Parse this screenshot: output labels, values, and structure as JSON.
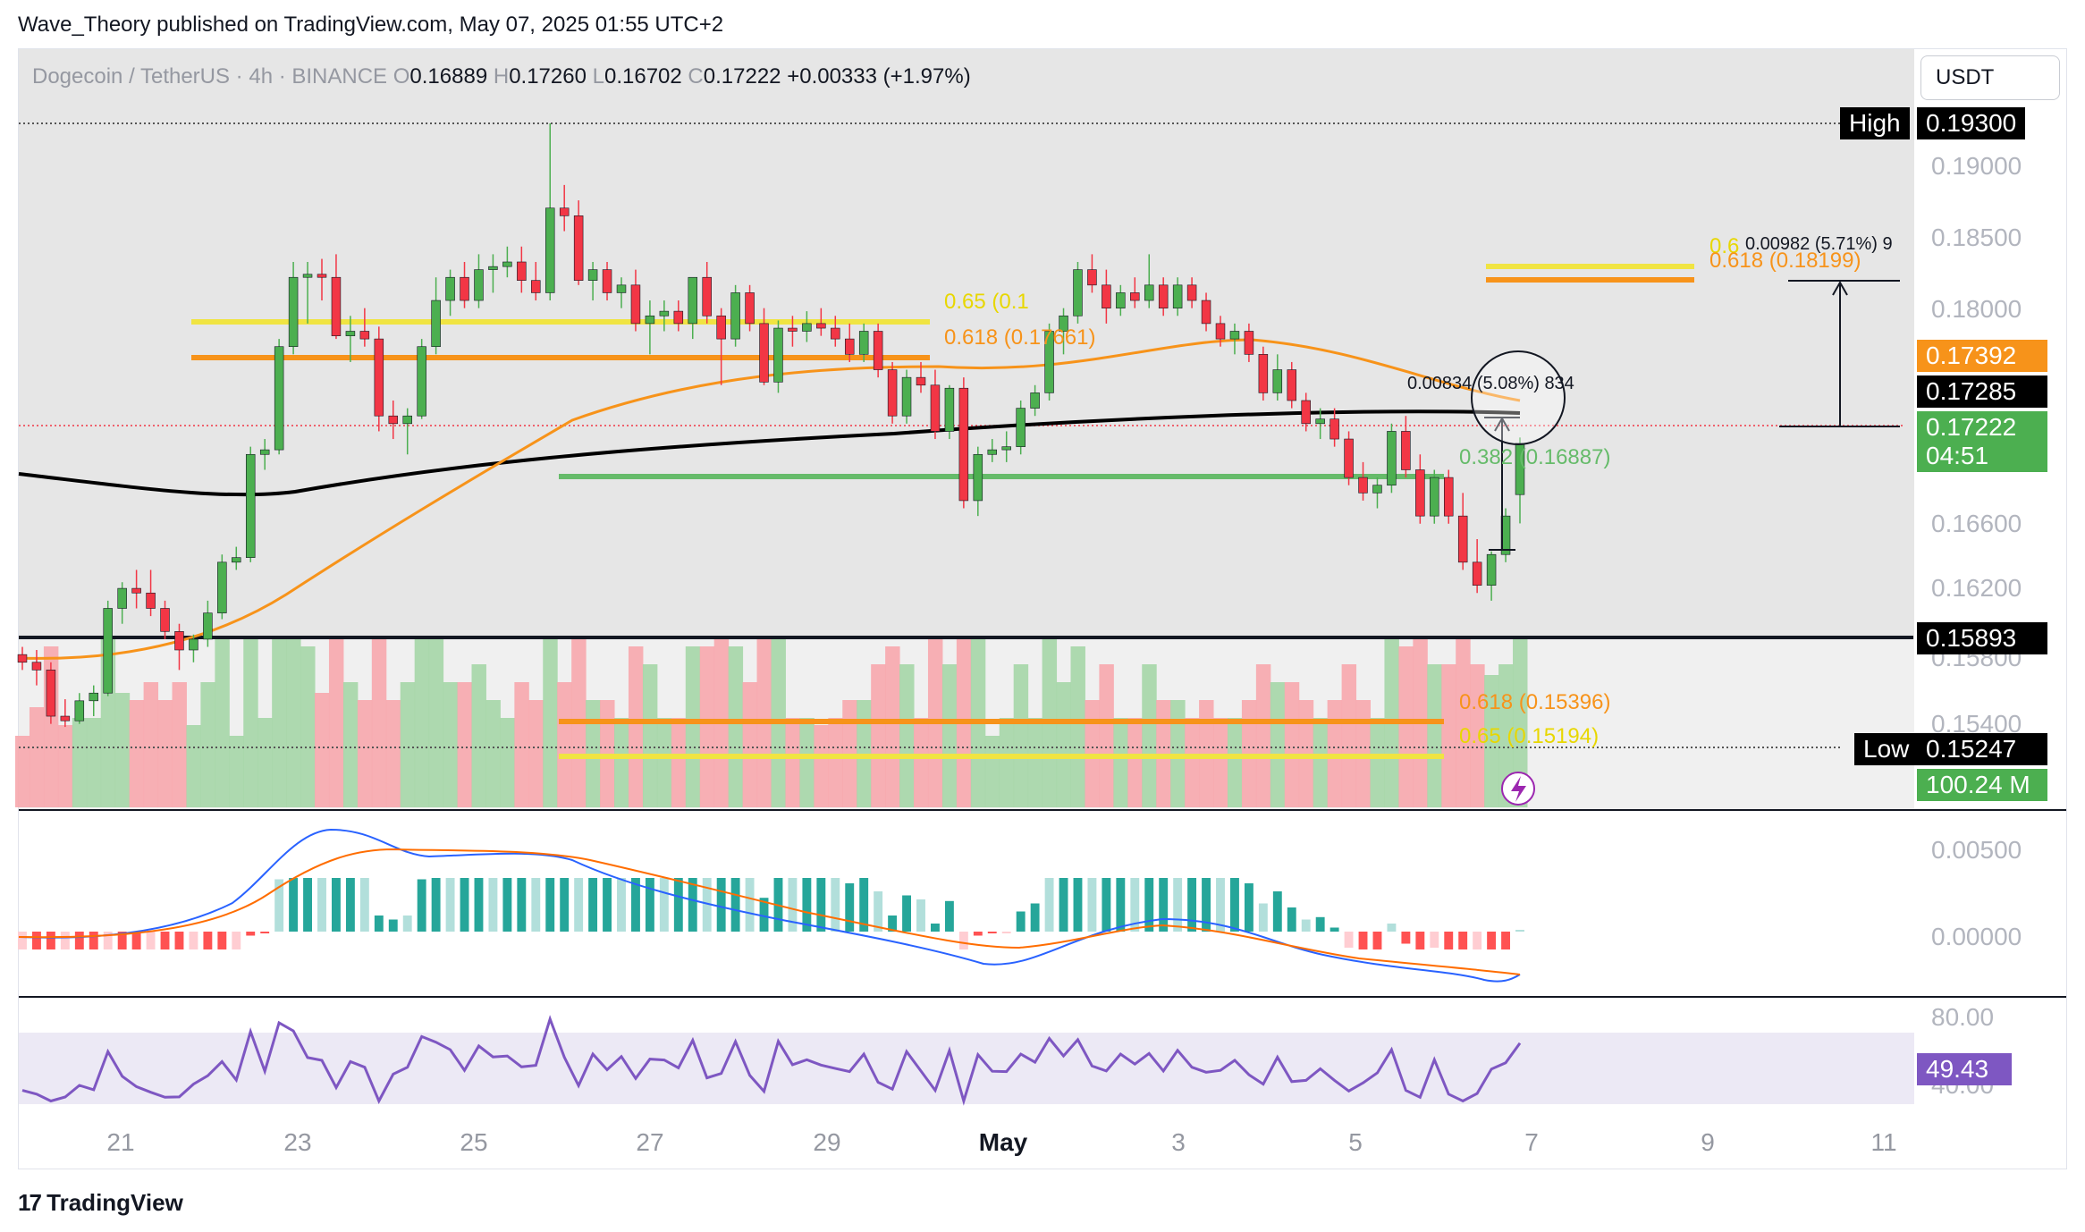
{
  "header": {
    "published_text": "Wave_Theory published on TradingView.com, May 07, 2025 01:55 UTC+2"
  },
  "legend": {
    "symbol": "Dogecoin / TetherUS · 4h · BINANCE",
    "o_label": "O",
    "o_value": "0.16889",
    "h_label": "H",
    "h_value": "0.17260",
    "l_label": "L",
    "l_value": "0.16702",
    "c_label": "C",
    "c_value": "0.17222",
    "change": "+0.00333 (+1.97%)"
  },
  "quote_currency": "USDT",
  "price_tags": {
    "high_label": "High",
    "high_value": "0.19300",
    "ema50": "0.17392",
    "ema200": "0.17285",
    "last": "0.17222",
    "countdown": "04:51",
    "level": "0.15893",
    "low_label": "Low",
    "low_value": "0.15247",
    "volume": "100.24 M",
    "rsi": "49.43"
  },
  "price_axis": [
    "0.19000",
    "0.18500",
    "0.18000",
    "0.16600",
    "0.16200",
    "0.15800",
    "0.15400"
  ],
  "macd_axis": [
    "0.00500",
    "0.00000"
  ],
  "rsi_axis": [
    "80.00",
    "40.00"
  ],
  "time_axis": [
    "21",
    "23",
    "25",
    "27",
    "29",
    "May",
    "3",
    "5",
    "7",
    "9",
    "11"
  ],
  "fib_labels": {
    "upper_065": "0.65 (0.1",
    "upper_0618": "0.618 (0.17661)",
    "right_0618": "0.618 (0.18199)",
    "right_065": "0.6",
    "lower_0382": "0.382 (0.16887)",
    "bottom_0618": "0.618 (0.15396)",
    "bottom_065": "0.65 (0.15194)"
  },
  "measure_labels": {
    "upper": "0.00982 (5.71%) 9",
    "middle": "0.00834 (5.08%) 834"
  },
  "colors": {
    "bull": "#4caf50",
    "bear": "#f23645",
    "ema50": "#f7931a",
    "ema200": "#000000",
    "fib_yellow": "#f0e442",
    "fib_orange": "#f7931a",
    "support_green": "#66bb6a",
    "vol_bull": "#a5d6a7",
    "vol_bear": "#f7a7ad",
    "macd": "#2962ff",
    "signal": "#ff6d00",
    "rsi": "#7e57c2",
    "rsi_tag": "#7e57c2"
  },
  "brand": "TradingView",
  "chart_data": {
    "type": "candlestick",
    "title": "Dogecoin / TetherUS · 4h · BINANCE",
    "xlabel": "",
    "ylabel": "",
    "x_range": [
      "Apr 20",
      "May 11"
    ],
    "ylim": [
      0.152,
      0.195
    ],
    "series": [
      {
        "name": "candles",
        "ohlc": [
          [
            0.1585,
            0.159,
            0.1575,
            0.158
          ],
          [
            0.158,
            0.1588,
            0.1565,
            0.1575
          ],
          [
            0.1575,
            0.158,
            0.154,
            0.1545
          ],
          [
            0.1545,
            0.1556,
            0.1538,
            0.1542
          ],
          [
            0.1542,
            0.156,
            0.154,
            0.1555
          ],
          [
            0.1555,
            0.1565,
            0.1545,
            0.156
          ],
          [
            0.156,
            0.162,
            0.1558,
            0.1615
          ],
          [
            0.1615,
            0.1632,
            0.1605,
            0.1628
          ],
          [
            0.1628,
            0.164,
            0.1615,
            0.1625
          ],
          [
            0.1625,
            0.164,
            0.161,
            0.1615
          ],
          [
            0.1615,
            0.162,
            0.1595,
            0.16
          ],
          [
            0.16,
            0.1605,
            0.1575,
            0.1588
          ],
          [
            0.1588,
            0.1598,
            0.158,
            0.1595
          ],
          [
            0.1595,
            0.162,
            0.159,
            0.1612
          ],
          [
            0.1612,
            0.165,
            0.1608,
            0.1645
          ],
          [
            0.1645,
            0.1655,
            0.164,
            0.1648
          ],
          [
            0.1648,
            0.172,
            0.1645,
            0.1715
          ],
          [
            0.1715,
            0.1725,
            0.1705,
            0.1718
          ],
          [
            0.1718,
            0.179,
            0.1715,
            0.1785
          ],
          [
            0.1785,
            0.184,
            0.178,
            0.183
          ],
          [
            0.183,
            0.184,
            0.18,
            0.1832
          ],
          [
            0.1832,
            0.1842,
            0.1815,
            0.183
          ],
          [
            0.183,
            0.1845,
            0.179,
            0.1792
          ],
          [
            0.1792,
            0.1805,
            0.1775,
            0.1795
          ],
          [
            0.1795,
            0.181,
            0.1785,
            0.179
          ],
          [
            0.179,
            0.1798,
            0.173,
            0.174
          ],
          [
            0.174,
            0.175,
            0.1725,
            0.1735
          ],
          [
            0.1735,
            0.1745,
            0.1715,
            0.174
          ],
          [
            0.174,
            0.179,
            0.1738,
            0.1785
          ],
          [
            0.1785,
            0.183,
            0.178,
            0.1815
          ],
          [
            0.1815,
            0.1835,
            0.1805,
            0.183
          ],
          [
            0.183,
            0.184,
            0.181,
            0.1815
          ],
          [
            0.1815,
            0.1845,
            0.181,
            0.1835
          ],
          [
            0.1835,
            0.1845,
            0.182,
            0.1837
          ],
          [
            0.1837,
            0.185,
            0.183,
            0.184
          ],
          [
            0.184,
            0.185,
            0.182,
            0.1828
          ],
          [
            0.1828,
            0.184,
            0.1815,
            0.182
          ],
          [
            0.182,
            0.193,
            0.1815,
            0.1875
          ],
          [
            0.1875,
            0.189,
            0.186,
            0.187
          ],
          [
            0.187,
            0.188,
            0.1825,
            0.1828
          ],
          [
            0.1828,
            0.184,
            0.1815,
            0.1835
          ],
          [
            0.1835,
            0.184,
            0.1815,
            0.182
          ],
          [
            0.182,
            0.183,
            0.181,
            0.1825
          ],
          [
            0.1825,
            0.1835,
            0.1795,
            0.18
          ],
          [
            0.18,
            0.1815,
            0.178,
            0.1805
          ],
          [
            0.1805,
            0.1815,
            0.1795,
            0.1808
          ],
          [
            0.1808,
            0.1815,
            0.1795,
            0.18
          ],
          [
            0.18,
            0.183,
            0.179,
            0.183
          ],
          [
            0.183,
            0.184,
            0.18,
            0.1805
          ],
          [
            0.1805,
            0.181,
            0.176,
            0.179
          ],
          [
            0.179,
            0.1825,
            0.1785,
            0.182
          ],
          [
            0.182,
            0.1825,
            0.1795,
            0.18
          ],
          [
            0.18,
            0.181,
            0.176,
            0.1762
          ],
          [
            0.1762,
            0.1802,
            0.1755,
            0.1797
          ],
          [
            0.1797,
            0.1805,
            0.1785,
            0.1795
          ],
          [
            0.1795,
            0.1808,
            0.1788,
            0.18
          ],
          [
            0.18,
            0.181,
            0.1792,
            0.1797
          ],
          [
            0.1797,
            0.1805,
            0.1785,
            0.179
          ],
          [
            0.179,
            0.18,
            0.1775,
            0.178
          ],
          [
            0.178,
            0.18,
            0.1775,
            0.1795
          ],
          [
            0.1795,
            0.18,
            0.1765,
            0.177
          ],
          [
            0.177,
            0.1775,
            0.1735,
            0.174
          ],
          [
            0.174,
            0.177,
            0.1735,
            0.1765
          ],
          [
            0.1765,
            0.1775,
            0.1755,
            0.176
          ],
          [
            0.176,
            0.177,
            0.1725,
            0.173
          ],
          [
            0.173,
            0.176,
            0.1725,
            0.1758
          ],
          [
            0.1758,
            0.1765,
            0.168,
            0.1685
          ],
          [
            0.1685,
            0.172,
            0.1675,
            0.1715
          ],
          [
            0.1715,
            0.1725,
            0.171,
            0.1718
          ],
          [
            0.1718,
            0.173,
            0.171,
            0.172
          ],
          [
            0.172,
            0.175,
            0.1715,
            0.1745
          ],
          [
            0.1745,
            0.176,
            0.174,
            0.1755
          ],
          [
            0.1755,
            0.18,
            0.175,
            0.1795
          ],
          [
            0.1795,
            0.181,
            0.178,
            0.1805
          ],
          [
            0.1805,
            0.184,
            0.18,
            0.1835
          ],
          [
            0.1835,
            0.1845,
            0.182,
            0.1825
          ],
          [
            0.1825,
            0.1835,
            0.18,
            0.181
          ],
          [
            0.181,
            0.1825,
            0.1805,
            0.182
          ],
          [
            0.182,
            0.183,
            0.181,
            0.1815
          ],
          [
            0.1815,
            0.1845,
            0.181,
            0.1825
          ],
          [
            0.1825,
            0.183,
            0.1805,
            0.181
          ],
          [
            0.181,
            0.183,
            0.1805,
            0.1825
          ],
          [
            0.1825,
            0.183,
            0.181,
            0.1815
          ],
          [
            0.1815,
            0.182,
            0.1795,
            0.18
          ],
          [
            0.18,
            0.1805,
            0.1785,
            0.179
          ],
          [
            0.179,
            0.18,
            0.178,
            0.1795
          ],
          [
            0.1795,
            0.18,
            0.1775,
            0.178
          ],
          [
            0.178,
            0.1785,
            0.175,
            0.1755
          ],
          [
            0.1755,
            0.178,
            0.175,
            0.177
          ],
          [
            0.177,
            0.1775,
            0.1745,
            0.175
          ],
          [
            0.175,
            0.1755,
            0.173,
            0.1735
          ],
          [
            0.1735,
            0.1745,
            0.1725,
            0.1738
          ],
          [
            0.1738,
            0.1745,
            0.172,
            0.1725
          ],
          [
            0.1725,
            0.173,
            0.1695,
            0.17
          ],
          [
            0.17,
            0.171,
            0.1685,
            0.169
          ],
          [
            0.169,
            0.17,
            0.168,
            0.1695
          ],
          [
            0.1695,
            0.1735,
            0.169,
            0.173
          ],
          [
            0.173,
            0.174,
            0.17,
            0.1705
          ],
          [
            0.1705,
            0.1715,
            0.167,
            0.1675
          ],
          [
            0.1675,
            0.1705,
            0.167,
            0.17
          ],
          [
            0.17,
            0.1705,
            0.167,
            0.1675
          ],
          [
            0.1675,
            0.169,
            0.164,
            0.1645
          ],
          [
            0.1645,
            0.166,
            0.1625,
            0.163
          ],
          [
            0.163,
            0.1652,
            0.162,
            0.165
          ],
          [
            0.165,
            0.168,
            0.1645,
            0.1675
          ],
          [
            0.16889,
            0.1726,
            0.16702,
            0.17222
          ]
        ]
      },
      {
        "name": "EMA 50",
        "color": "#f7931a",
        "start": 0.156,
        "end": 0.17392
      },
      {
        "name": "EMA 200",
        "color": "#000000",
        "start": 0.169,
        "end": 0.17285
      }
    ],
    "horizontal_levels": [
      {
        "label": "High",
        "value": 0.193
      },
      {
        "label": "Low",
        "value": 0.15247
      },
      {
        "value": 0.15893
      },
      {
        "label": "0.618 (0.15396)",
        "value": 0.15396
      },
      {
        "label": "0.65 (0.15194)",
        "value": 0.15194
      },
      {
        "label": "0.618 (0.17661)",
        "value": 0.17661
      },
      {
        "label": "0.618 (0.18199)",
        "value": 0.18199
      },
      {
        "label": "0.382 (0.16887)",
        "value": 0.16887
      }
    ],
    "indicators": {
      "volume_last": "100.24 M",
      "macd_range": [
        -0.003,
        0.006
      ],
      "rsi_last": 49.43,
      "rsi_range": [
        30,
        90
      ]
    }
  }
}
